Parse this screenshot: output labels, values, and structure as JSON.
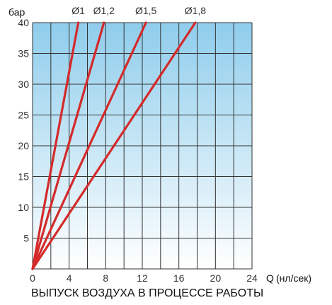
{
  "chart_data": {
    "type": "line",
    "ylabel": "бар",
    "x_axis_symbol": "Q",
    "x_axis_unit": "(нл/сек)",
    "caption": "ВЫПУСК ВОЗДУХА В ПРОЦЕССЕ РАБОТЫ",
    "xlim": [
      0,
      24
    ],
    "ylim": [
      0,
      40
    ],
    "x_ticks": [
      0,
      4,
      8,
      12,
      16,
      20,
      24
    ],
    "y_ticks": [
      5,
      10,
      15,
      20,
      25,
      30,
      35,
      40
    ],
    "x_grid_step": 2,
    "y_grid_step": 5,
    "grid": true,
    "series": [
      {
        "name": "Ø1",
        "points": [
          [
            0,
            0
          ],
          [
            5.0,
            40
          ]
        ]
      },
      {
        "name": "Ø1,2",
        "points": [
          [
            0,
            0
          ],
          [
            7.8,
            40
          ]
        ]
      },
      {
        "name": "Ø1,5",
        "points": [
          [
            0,
            0
          ],
          [
            12.4,
            40
          ]
        ]
      },
      {
        "name": "Ø1,8",
        "points": [
          [
            0,
            0
          ],
          [
            17.8,
            40
          ]
        ]
      }
    ],
    "colors": {
      "line": "#d42a2a",
      "grid": "#333333",
      "background_top": "#8fcdec",
      "background_bottom": "#ffffff"
    }
  }
}
